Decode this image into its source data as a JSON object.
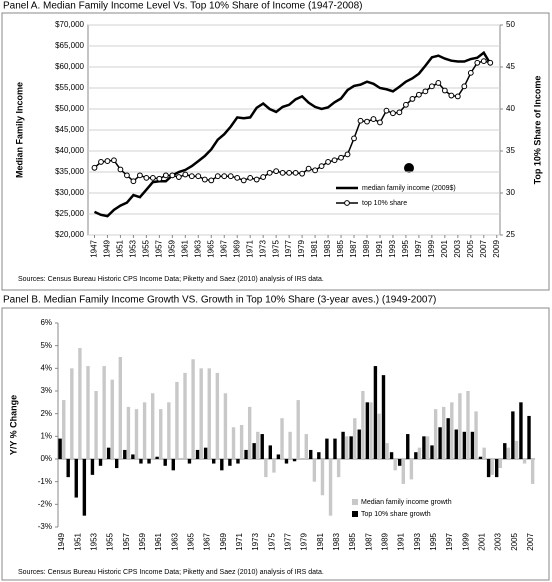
{
  "chart_data": [
    {
      "type": "line",
      "title": "Panel A. Median Family Income Level Vs. Top 10% Share of Income (1947-2008)",
      "ylabel": "Median Family Income",
      "y2label": "Top 10% Share of Income",
      "source": "Sources: Census Bureau Historic CPS Income Data; Piketty and Saez (2010) analysis of IRS data.",
      "x": [
        1947,
        1948,
        1949,
        1950,
        1951,
        1952,
        1953,
        1954,
        1955,
        1956,
        1957,
        1958,
        1959,
        1960,
        1961,
        1962,
        1963,
        1964,
        1965,
        1966,
        1967,
        1968,
        1969,
        1970,
        1971,
        1972,
        1973,
        1974,
        1975,
        1976,
        1977,
        1978,
        1979,
        1980,
        1981,
        1982,
        1983,
        1984,
        1985,
        1986,
        1987,
        1988,
        1989,
        1990,
        1991,
        1992,
        1993,
        1994,
        1995,
        1996,
        1997,
        1998,
        1999,
        2000,
        2001,
        2002,
        2003,
        2004,
        2005,
        2006,
        2007,
        2008
      ],
      "series": [
        {
          "name": "median family income (2009$)",
          "color": "#000000",
          "axis": "y",
          "values": [
            25500,
            24800,
            24500,
            26000,
            27000,
            27700,
            29500,
            29000,
            30800,
            32600,
            32800,
            32800,
            34200,
            35000,
            35500,
            36400,
            37600,
            38800,
            40400,
            42700,
            44000,
            45800,
            48000,
            47800,
            48000,
            50300,
            51300,
            50000,
            49300,
            50500,
            51000,
            52300,
            53000,
            51500,
            50500,
            50000,
            50400,
            51600,
            52500,
            54500,
            55500,
            55800,
            56500,
            56000,
            55000,
            54700,
            54200,
            55300,
            56500,
            57300,
            58400,
            60300,
            62300,
            62700,
            62000,
            61500,
            61300,
            61300,
            61900,
            62200,
            63400,
            60800
          ]
        },
        {
          "name": "top 10% share",
          "color": "#000000",
          "axis": "y2",
          "marker": "circle",
          "values": [
            33.0,
            33.7,
            33.8,
            33.9,
            32.8,
            32.1,
            31.4,
            32.1,
            31.8,
            31.8,
            31.7,
            32.1,
            32.1,
            31.9,
            32.2,
            32.0,
            32.0,
            31.6,
            31.5,
            32.0,
            32.0,
            32.0,
            31.8,
            31.5,
            31.8,
            31.6,
            31.9,
            32.4,
            32.6,
            32.4,
            32.4,
            32.4,
            32.3,
            32.9,
            32.7,
            33.2,
            33.7,
            33.9,
            34.2,
            34.6,
            36.5,
            38.6,
            38.5,
            38.8,
            38.4,
            39.8,
            39.5,
            39.6,
            40.5,
            41.2,
            41.7,
            42.1,
            42.7,
            43.1,
            42.2,
            41.6,
            41.5,
            42.7,
            44.3,
            45.5,
            45.7,
            45.5
          ]
        }
      ],
      "xlim": [
        1946,
        2009.5
      ],
      "xticks": [
        1947,
        1949,
        1951,
        1953,
        1955,
        1957,
        1959,
        1961,
        1963,
        1965,
        1967,
        1969,
        1971,
        1973,
        1975,
        1977,
        1979,
        1981,
        1983,
        1985,
        1987,
        1989,
        1991,
        1993,
        1995,
        1997,
        1999,
        2001,
        2003,
        2005,
        2007,
        2009
      ],
      "ylim": [
        20000,
        70000
      ],
      "yticks": [
        {
          "value": 20000,
          "label": "$20,000"
        },
        {
          "value": 25000,
          "label": "$25,000"
        },
        {
          "value": 30000,
          "label": "$30,000"
        },
        {
          "value": 35000,
          "label": "$35,000"
        },
        {
          "value": 40000,
          "label": "$40,000"
        },
        {
          "value": 45000,
          "label": "$45,000"
        },
        {
          "value": 50000,
          "label": "$50,000"
        },
        {
          "value": 55000,
          "label": "$55,000"
        },
        {
          "value": 60000,
          "label": "$60,000"
        },
        {
          "value": 65000,
          "label": "$65,000"
        },
        {
          "value": 70000,
          "label": "$70,000"
        }
      ],
      "y2lim": [
        25,
        50
      ],
      "y2ticks": [
        25,
        30,
        35,
        40,
        45,
        50
      ],
      "grid": true,
      "legend": "lower right"
    },
    {
      "type": "bar",
      "title": "Panel B. Median Family Income Growth VS. Growth in Top 10% Share (3-year aves.) (1949-2007)",
      "ylabel": "Y/Y % Change",
      "source": "Sources: Census Bureau Historic CPS Income Data; Piketty and Saez (2010) analysis of IRS data.",
      "categories": [
        "1949",
        null,
        "1951",
        null,
        "1953",
        null,
        "1955",
        null,
        "1957",
        null,
        "1959",
        null,
        "1961",
        null,
        "1963",
        null,
        "1965",
        null,
        "1967",
        null,
        "1969",
        null,
        "1971",
        null,
        "1973",
        null,
        "1975",
        null,
        "1977",
        null,
        "1979",
        null,
        "1981",
        null,
        "1983",
        null,
        "1985",
        null,
        "1987",
        null,
        "1989",
        null,
        "1991",
        null,
        "1993",
        null,
        "1995",
        null,
        "1997",
        null,
        "1999",
        null,
        "2001",
        null,
        "2003",
        null,
        "2005",
        null,
        "2007"
      ],
      "series": [
        {
          "name": "Top 10% share growth",
          "color": "#000000",
          "values": [
            0.9,
            -0.8,
            -1.7,
            -2.5,
            -0.7,
            -0.3,
            0.5,
            -0.4,
            0.4,
            0.2,
            -0.2,
            -0.2,
            0.1,
            -0.3,
            -0.5,
            0.0,
            -0.2,
            0.4,
            0.5,
            -0.2,
            -0.5,
            -0.3,
            -0.2,
            0.4,
            0.7,
            1.1,
            0.6,
            0.2,
            -0.2,
            -0.1,
            0.0,
            0.4,
            0.3,
            0.9,
            0.9,
            1.2,
            1.0,
            1.3,
            2.5,
            4.1,
            3.7,
            0.3,
            -0.3,
            1.1,
            0.3,
            1.0,
            0.6,
            1.4,
            1.8,
            1.3,
            1.2,
            1.2,
            0.1,
            -0.8,
            -0.8,
            0.7,
            2.1,
            2.5,
            1.9
          ]
        },
        {
          "name": "Median family income growth",
          "color": "#c8c8c8",
          "values": [
            2.6,
            4.0,
            4.9,
            4.1,
            3.0,
            4.1,
            3.5,
            4.5,
            2.3,
            2.2,
            2.5,
            2.9,
            2.2,
            2.5,
            3.4,
            3.8,
            4.4,
            4.0,
            4.0,
            3.8,
            2.9,
            1.4,
            1.5,
            2.3,
            1.2,
            -0.8,
            -0.6,
            1.8,
            1.2,
            2.6,
            1.1,
            -1.0,
            -1.6,
            -2.5,
            -0.8,
            1.0,
            1.8,
            3.0,
            2.5,
            2.0,
            0.7,
            -0.5,
            -1.1,
            -0.9,
            0.5,
            1.0,
            2.2,
            2.3,
            2.5,
            2.9,
            3.0,
            2.1,
            0.5,
            -0.7,
            -0.4,
            0.5,
            0.8,
            -0.2,
            -1.1
          ]
        }
      ],
      "ylim": [
        -3,
        6
      ],
      "yticks": [
        {
          "value": -3,
          "label": "-3%"
        },
        {
          "value": -2,
          "label": "-2%"
        },
        {
          "value": -1,
          "label": "-1%"
        },
        {
          "value": 0,
          "label": "0%"
        },
        {
          "value": 1,
          "label": "1%"
        },
        {
          "value": 2,
          "label": "2%"
        },
        {
          "value": 3,
          "label": "3%"
        },
        {
          "value": 4,
          "label": "4%"
        },
        {
          "value": 5,
          "label": "5%"
        },
        {
          "value": 6,
          "label": "6%"
        }
      ],
      "grid": false,
      "legend": "lower right"
    }
  ]
}
